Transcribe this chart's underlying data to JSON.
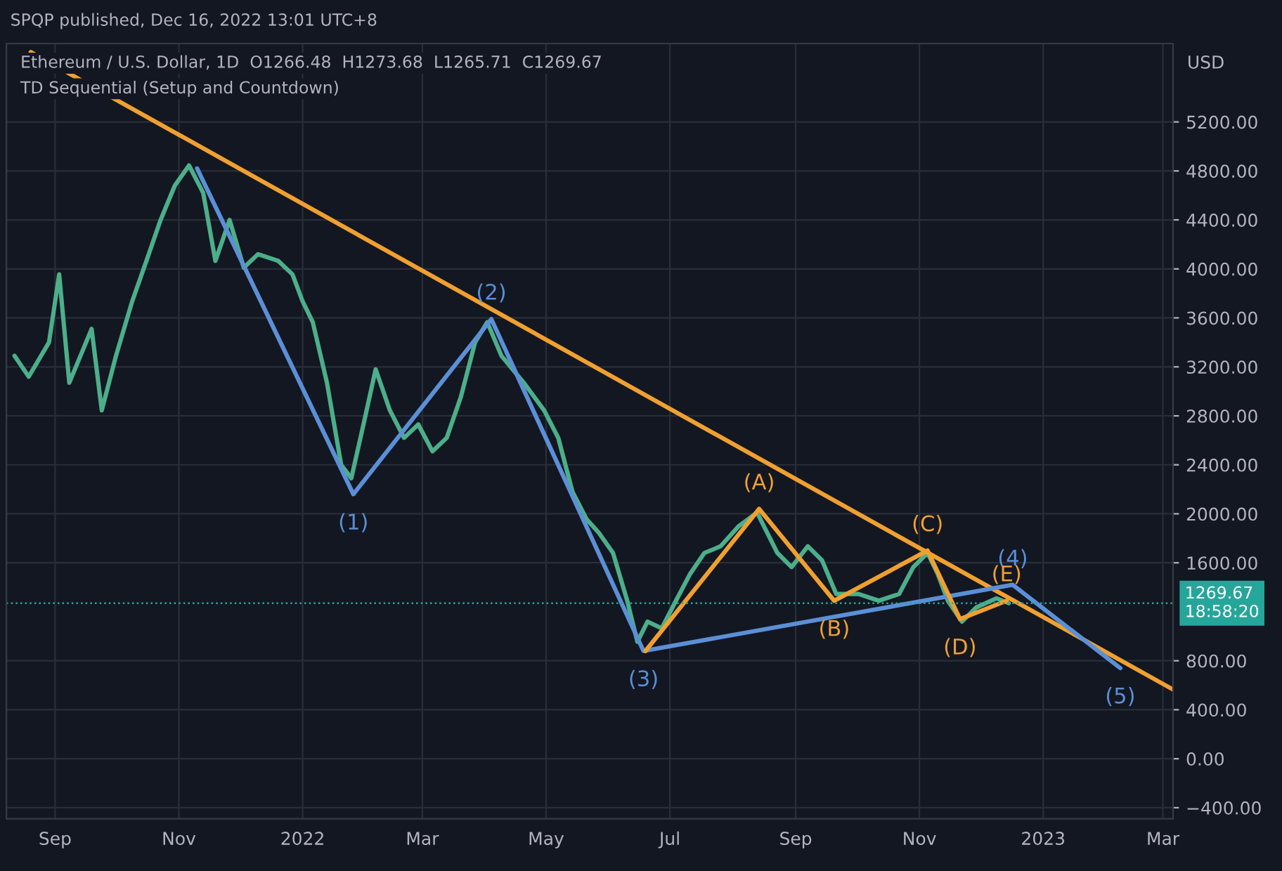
{
  "chart_data": {
    "type": "line",
    "title": "Ethereum / U.S. Dollar, 1D  O1266.48  H1273.68  L1265.71  C1269.67",
    "subtitle": "TD Sequential (Setup and Countdown)",
    "ylabel": "USD",
    "annotations": [
      "SPQP published, Dec 16, 2022 13:01 UTC+8",
      {
        "text": "(1)",
        "x": "2022-01-26",
        "y": 2160
      },
      {
        "text": "(2)",
        "x": "2022-04-04",
        "y": 3590
      },
      {
        "text": "(3)",
        "x": "2022-06-18",
        "y": 880
      },
      {
        "text": "(4)",
        "x": "2022-12-17",
        "y": 1420
      },
      {
        "text": "(5)",
        "x": "2023-02-08",
        "y": 740
      },
      {
        "text": "(A)",
        "x": "2022-08-14",
        "y": 2040
      },
      {
        "text": "(B)",
        "x": "2022-09-20",
        "y": 1290
      },
      {
        "text": "(C)",
        "x": "2022-11-05",
        "y": 1700
      },
      {
        "text": "(D)",
        "x": "2022-11-21",
        "y": 1140
      },
      {
        "text": "(E)",
        "x": "2022-12-14",
        "y": 1290
      }
    ],
    "xlim": [
      "2021-08-08",
      "2023-03-06"
    ],
    "ylim": [
      -490,
      5840
    ],
    "xticks": [
      {
        "value": "2021-09-01",
        "label": "Sep"
      },
      {
        "value": "2021-11-01",
        "label": "Nov"
      },
      {
        "value": "2022-01-01",
        "label": "2022"
      },
      {
        "value": "2022-03-01",
        "label": "Mar"
      },
      {
        "value": "2022-05-01",
        "label": "May"
      },
      {
        "value": "2022-07-01",
        "label": "Jul"
      },
      {
        "value": "2022-09-01",
        "label": "Sep"
      },
      {
        "value": "2022-11-01",
        "label": "Nov"
      },
      {
        "value": "2023-01-01",
        "label": "2023"
      },
      {
        "value": "2023-03-01",
        "label": "Mar"
      }
    ],
    "yticks": [
      {
        "value": -400,
        "label": "−400.00"
      },
      {
        "value": 0,
        "label": "0.00"
      },
      {
        "value": 400,
        "label": "400.00"
      },
      {
        "value": 800,
        "label": "800.00"
      },
      {
        "value": 1600,
        "label": "1600.00"
      },
      {
        "value": 2000,
        "label": "2000.00"
      },
      {
        "value": 2400,
        "label": "2400.00"
      },
      {
        "value": 2800,
        "label": "2800.00"
      },
      {
        "value": 3200,
        "label": "3200.00"
      },
      {
        "value": 3600,
        "label": "3600.00"
      },
      {
        "value": 4000,
        "label": "4000.00"
      },
      {
        "value": 4400,
        "label": "4400.00"
      },
      {
        "value": 4800,
        "label": "4800.00"
      },
      {
        "value": 5200,
        "label": "5200.00"
      }
    ],
    "grid": true,
    "legend": false,
    "marker": "none",
    "ref_lines": [
      {
        "axis": "y",
        "value": 1269.67,
        "label": "1269.67\n18:58:20",
        "color": "#26a69a",
        "line_style": "dotted"
      }
    ],
    "series": [
      {
        "color": "#4caf8a",
        "x": [
          "2021-08-12",
          "2021-08-19",
          "2021-08-29",
          "2021-09-03",
          "2021-09-08",
          "2021-09-19",
          "2021-09-24",
          "2021-10-01",
          "2021-10-09",
          "2021-10-16",
          "2021-10-23",
          "2021-10-30",
          "2021-11-06",
          "2021-11-13",
          "2021-11-19",
          "2021-11-26",
          "2021-12-03",
          "2021-12-10",
          "2021-12-20",
          "2021-12-27",
          "2022-01-01",
          "2022-01-06",
          "2022-01-13",
          "2022-01-20",
          "2022-01-25",
          "2022-01-31",
          "2022-02-06",
          "2022-02-13",
          "2022-02-20",
          "2022-02-27",
          "2022-03-06",
          "2022-03-13",
          "2022-03-20",
          "2022-03-27",
          "2022-04-02",
          "2022-04-09",
          "2022-04-20",
          "2022-04-30",
          "2022-05-07",
          "2022-05-14",
          "2022-05-21",
          "2022-05-27",
          "2022-06-03",
          "2022-06-10",
          "2022-06-15",
          "2022-06-20",
          "2022-06-27",
          "2022-07-04",
          "2022-07-11",
          "2022-07-18",
          "2022-07-26",
          "2022-08-04",
          "2022-08-13",
          "2022-08-18",
          "2022-08-23",
          "2022-08-30",
          "2022-09-07",
          "2022-09-14",
          "2022-09-21",
          "2022-10-02",
          "2022-10-12",
          "2022-10-22",
          "2022-10-29",
          "2022-11-05",
          "2022-11-10",
          "2022-11-15",
          "2022-11-22",
          "2022-11-29",
          "2022-12-09",
          "2022-12-15"
        ],
        "values": [
          3290,
          3120,
          3400,
          3955,
          3070,
          3510,
          2845,
          3290,
          3735,
          4065,
          4400,
          4680,
          4845,
          4620,
          4065,
          4400,
          4010,
          4120,
          4065,
          3955,
          3735,
          3565,
          3070,
          2400,
          2290,
          2730,
          3180,
          2845,
          2620,
          2730,
          2510,
          2620,
          2955,
          3400,
          3565,
          3290,
          3070,
          2845,
          2620,
          2180,
          1955,
          1845,
          1680,
          1290,
          955,
          1120,
          1065,
          1290,
          1510,
          1680,
          1735,
          1900,
          2010,
          1845,
          1680,
          1565,
          1735,
          1620,
          1345,
          1345,
          1290,
          1345,
          1565,
          1680,
          1510,
          1290,
          1120,
          1235,
          1310,
          1270
        ]
      },
      {
        "color": "#f0a030",
        "x": [
          "2021-08-20",
          "2023-03-06"
        ],
        "values": [
          5770,
          565
        ]
      },
      {
        "color": "#5b8fd6",
        "x": [
          "2021-11-10",
          "2022-01-26",
          "2022-04-04",
          "2022-06-18",
          "2022-12-17",
          "2023-02-08"
        ],
        "values": [
          4820,
          2160,
          3590,
          880,
          1420,
          740
        ]
      },
      {
        "color": "#f0a030",
        "x": [
          "2022-06-19",
          "2022-08-14",
          "2022-09-20",
          "2022-11-05",
          "2022-11-21",
          "2022-12-14"
        ],
        "values": [
          880,
          2040,
          1290,
          1700,
          1140,
          1290
        ]
      }
    ]
  }
}
